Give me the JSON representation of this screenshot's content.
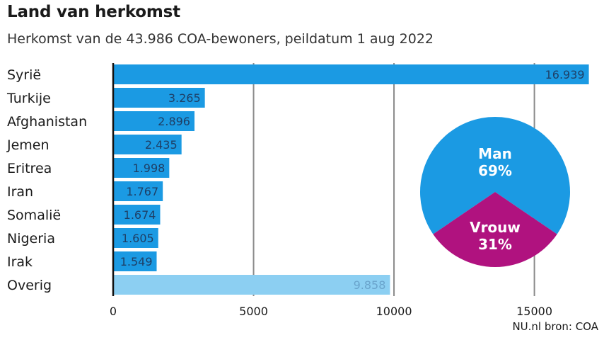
{
  "title": "Land van herkomst",
  "subtitle": "Herkomst van de 43.986 COA-bewoners, peildatum 1 aug 2022",
  "source": "NU.nl bron: COA",
  "colors": {
    "bar": "#1b9ae3",
    "bar_other": "#8ccff2",
    "grid": "#8a8a8a",
    "axis": "#111111",
    "pie_man": "#1b9ae3",
    "pie_woman": "#b0127f",
    "label_dark": "#1e3f66",
    "label_other": "#6aa4cc"
  },
  "chart_data": [
    {
      "type": "bar",
      "orientation": "horizontal",
      "categories": [
        "Syrië",
        "Turkije",
        "Afghanistan",
        "Jemen",
        "Eritrea",
        "Iran",
        "Somalië",
        "Nigeria",
        "Irak",
        "Overig"
      ],
      "values": [
        16939,
        3265,
        2896,
        2435,
        1998,
        1767,
        1674,
        1605,
        1549,
        9858
      ],
      "value_labels": [
        "16.939",
        "3.265",
        "2.896",
        "2.435",
        "1.998",
        "1.767",
        "1.674",
        "1.605",
        "1.549",
        "9.858"
      ],
      "xlim": [
        0,
        17000
      ],
      "xticks": [
        0,
        5000,
        10000,
        15000
      ],
      "xtick_labels": [
        "0",
        "5000",
        "10000",
        "15000"
      ],
      "grid": true
    },
    {
      "type": "pie",
      "slices": [
        {
          "name": "Man",
          "value": 69,
          "label": "69%"
        },
        {
          "name": "Vrouw",
          "value": 31,
          "label": "31%"
        }
      ]
    }
  ]
}
